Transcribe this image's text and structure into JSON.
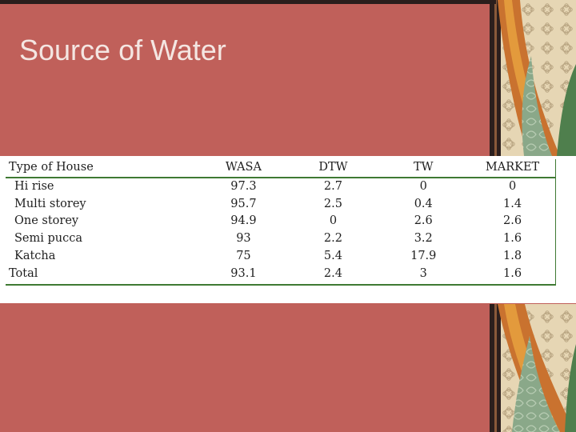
{
  "slide": {
    "title": "Source of Water",
    "colors": {
      "background": "#c0605a",
      "accent_green": "#3f7a33",
      "title_text": "#f4e6e2"
    }
  },
  "table": {
    "headers": [
      "Type of House",
      "WASA",
      "DTW",
      "TW",
      "MARKET"
    ],
    "rows": [
      {
        "label": "Hi rise",
        "indent": true,
        "values": [
          "97.3",
          "2.7",
          "0",
          "0"
        ]
      },
      {
        "label": "Multi storey",
        "indent": true,
        "values": [
          "95.7",
          "2.5",
          "0.4",
          "1.4"
        ]
      },
      {
        "label": "One storey",
        "indent": true,
        "values": [
          "94.9",
          "0",
          "2.6",
          "2.6"
        ]
      },
      {
        "label": "Semi pucca",
        "indent": true,
        "values": [
          "93",
          "2.2",
          "3.2",
          "1.6"
        ]
      },
      {
        "label": "Katcha",
        "indent": true,
        "values": [
          "75",
          "5.4",
          "17.9",
          "1.8"
        ]
      },
      {
        "label": "Total",
        "indent": false,
        "values": [
          "93.1",
          "2.4",
          "3",
          "1.6"
        ]
      }
    ]
  }
}
